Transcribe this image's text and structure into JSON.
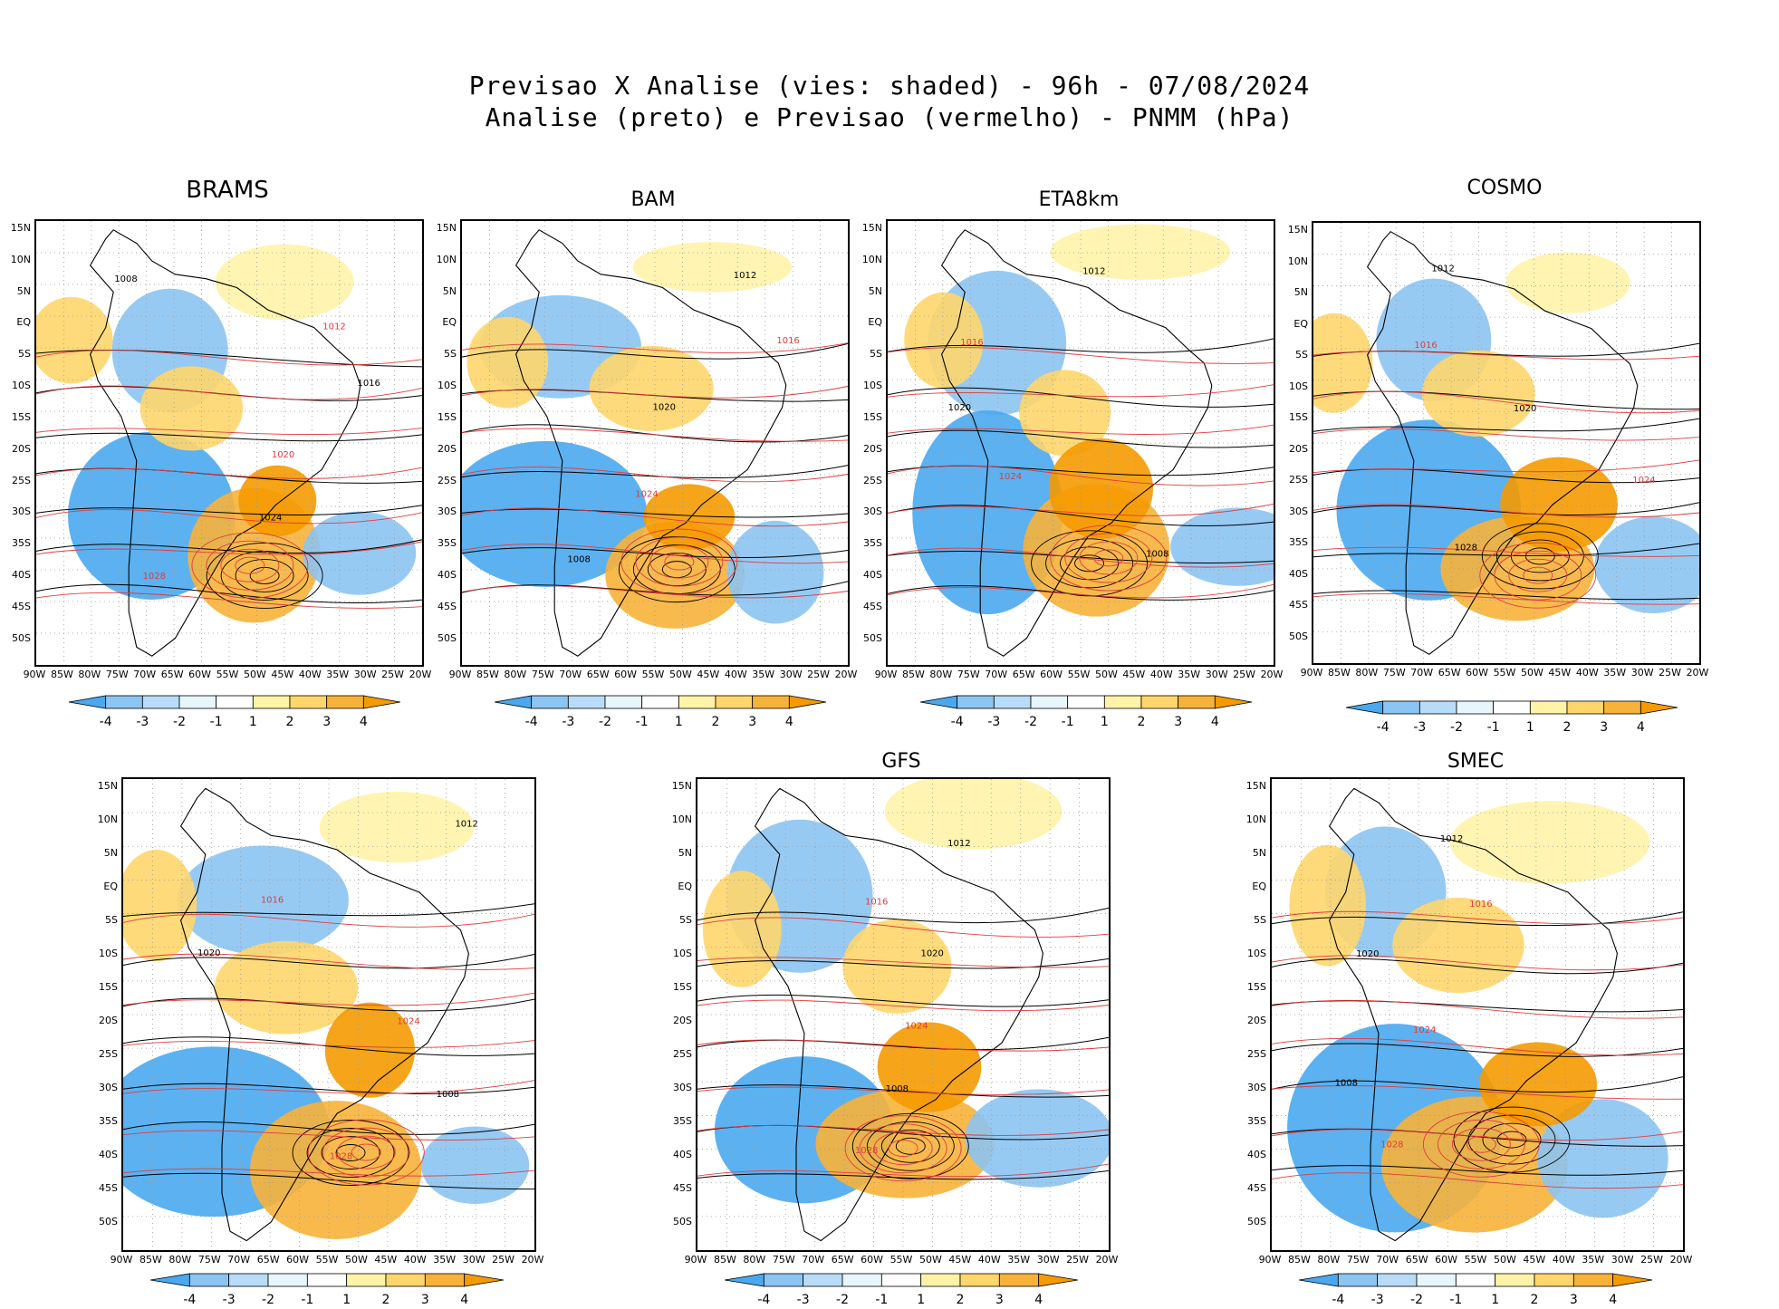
{
  "header": {
    "line1": "Previsao X Analise (vies: shaded) - 96h - 07/08/2024",
    "line2": "Analise (preto) e Previsao (vermelho) - PNMM (hPa)"
  },
  "axes": {
    "lat_labels": [
      "15N",
      "10N",
      "5N",
      "EQ",
      "5S",
      "10S",
      "15S",
      "20S",
      "25S",
      "30S",
      "35S",
      "40S",
      "45S",
      "50S"
    ],
    "lon_labels": [
      "90W",
      "85W",
      "80W",
      "75W",
      "70W",
      "65W",
      "60W",
      "55W",
      "50W",
      "45W",
      "40W",
      "35W",
      "30W",
      "25W",
      "20W"
    ]
  },
  "colorbar": {
    "labels": [
      "-4",
      "-3",
      "-2",
      "-1",
      "1",
      "2",
      "3",
      "4"
    ],
    "colors": [
      "#4aa8ef",
      "#8cc4f2",
      "#b8dcf8",
      "#e6f6fb",
      "#ffffff",
      "#fff3a8",
      "#ffd66b",
      "#f7b23a",
      "#f59a00"
    ]
  },
  "panels": [
    {
      "title": "BRAMS",
      "contours": [
        "1008",
        "1012",
        "1016",
        "1020",
        "1024",
        "1028"
      ]
    },
    {
      "title": "BAM",
      "contours": [
        "1012",
        "1016",
        "1020",
        "1024",
        "1008"
      ]
    },
    {
      "title": "ETA8km",
      "contours": [
        "1012",
        "1016",
        "1020",
        "1024",
        "1008"
      ]
    },
    {
      "title": "COSMO",
      "contours": [
        "1012",
        "1016",
        "1020",
        "1024",
        "1028"
      ]
    },
    {
      "title": "",
      "contours": [
        "1012",
        "1016",
        "1020",
        "1024",
        "1008",
        "1028"
      ]
    },
    {
      "title": "GFS",
      "contours": [
        "1012",
        "1016",
        "1020",
        "1024",
        "1008",
        "1028"
      ]
    },
    {
      "title": "SMEC",
      "contours": [
        "1012",
        "1016",
        "1020",
        "1024",
        "1008",
        "1028"
      ]
    }
  ]
}
